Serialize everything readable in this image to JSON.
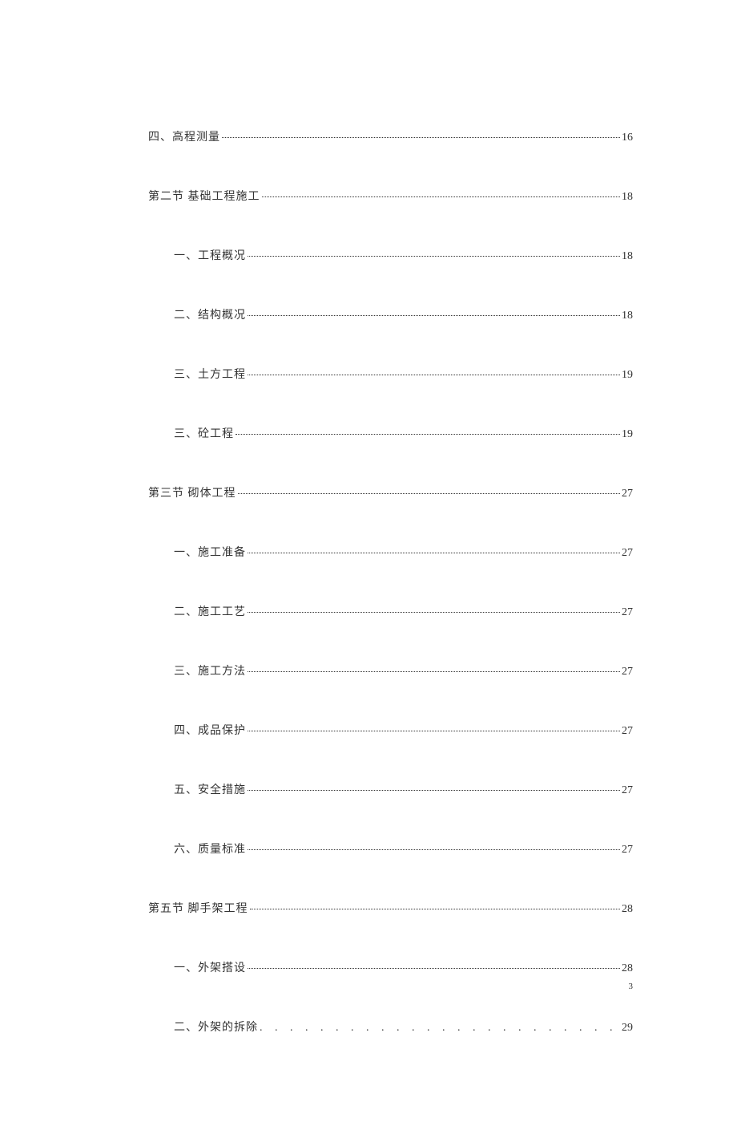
{
  "text_color": "#333333",
  "background_color": "#ffffff",
  "font_family": "SimSun",
  "font_size_pt": 11,
  "page_number": "3",
  "entries": [
    {
      "level": 0,
      "label": "四、高程测量",
      "page": "16",
      "dot_style": "tight"
    },
    {
      "level": 1,
      "label": "第二节  基础工程施工",
      "page": "18",
      "dot_style": "tight"
    },
    {
      "level": 2,
      "label": "一、工程概况",
      "page": "18",
      "dot_style": "tight"
    },
    {
      "level": 2,
      "label": "二、结构概况",
      "page": "18",
      "dot_style": "tight"
    },
    {
      "level": 2,
      "label": "三、土方工程",
      "page": "19",
      "dot_style": "tight"
    },
    {
      "level": 2,
      "label": "三、砼工程",
      "page": "19",
      "dot_style": "tight"
    },
    {
      "level": 1,
      "label": "第三节  砌体工程",
      "page": "27",
      "dot_style": "tight"
    },
    {
      "level": 2,
      "label": "一、施工准备",
      "page": "27",
      "dot_style": "tight"
    },
    {
      "level": 2,
      "label": "二、施工工艺",
      "page": "27",
      "dot_style": "tight"
    },
    {
      "level": 2,
      "label": "三、施工方法",
      "page": "27",
      "dot_style": "tight"
    },
    {
      "level": 2,
      "label": "四、成品保护",
      "page": "27",
      "dot_style": "tight"
    },
    {
      "level": 2,
      "label": "五、安全措施",
      "page": "27",
      "dot_style": "tight"
    },
    {
      "level": 2,
      "label": "六、质量标准",
      "page": "27",
      "dot_style": "tight"
    },
    {
      "level": 1,
      "label": "第五节  脚手架工程",
      "page": "28",
      "dot_style": "tight"
    },
    {
      "level": 2,
      "label": "一、外架搭设",
      "page": "28",
      "dot_style": "tight"
    },
    {
      "level": 2,
      "label": "二、外架的拆除",
      "page": "29",
      "dot_style": "wide"
    }
  ]
}
